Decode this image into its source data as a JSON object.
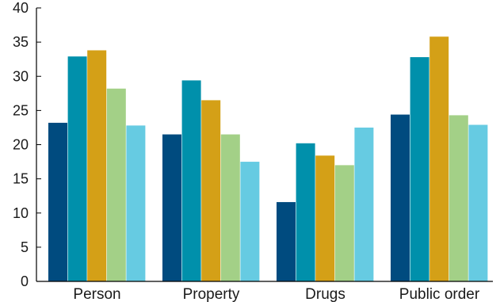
{
  "chart_data": {
    "type": "bar",
    "categories": [
      "Person",
      "Property",
      "Drugs",
      "Public order"
    ],
    "series": [
      {
        "color": "#004b7f",
        "values": [
          23.2,
          21.5,
          11.6,
          24.4
        ]
      },
      {
        "color": "#0090ab",
        "values": [
          32.9,
          29.4,
          20.2,
          32.8
        ]
      },
      {
        "color": "#d4a017",
        "values": [
          33.8,
          26.5,
          18.4,
          35.8
        ]
      },
      {
        "color": "#a3d087",
        "values": [
          28.2,
          21.5,
          17.0,
          24.3
        ]
      },
      {
        "color": "#66cbe2",
        "values": [
          22.8,
          17.5,
          22.5,
          22.9
        ]
      }
    ],
    "yticks": [
      0,
      5,
      10,
      15,
      20,
      25,
      30,
      35,
      40
    ],
    "ylim": [
      0,
      40
    ],
    "grid": false,
    "legend": "none"
  }
}
